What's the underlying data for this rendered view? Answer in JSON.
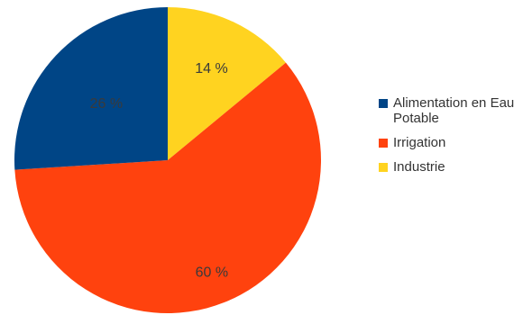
{
  "chart_data": {
    "type": "pie",
    "title": "",
    "slices": [
      {
        "name": "Alimentation en Eau Potable",
        "value": 26,
        "label": "26 %",
        "color": "#004586"
      },
      {
        "name": "Irrigation",
        "value": 60,
        "label": "60 %",
        "color": "#ff420e"
      },
      {
        "name": "Industrie",
        "value": 14,
        "label": "14 %",
        "color": "#ffd320"
      }
    ],
    "start_angle_deg": 0,
    "direction": "clockwise",
    "legend_position": "right"
  },
  "legend": {
    "items": [
      {
        "label": "Alimentation en Eau Potable",
        "color": "#004586"
      },
      {
        "label": "Irrigation",
        "color": "#ff420e"
      },
      {
        "label": "Industrie",
        "color": "#ffd320"
      }
    ]
  }
}
